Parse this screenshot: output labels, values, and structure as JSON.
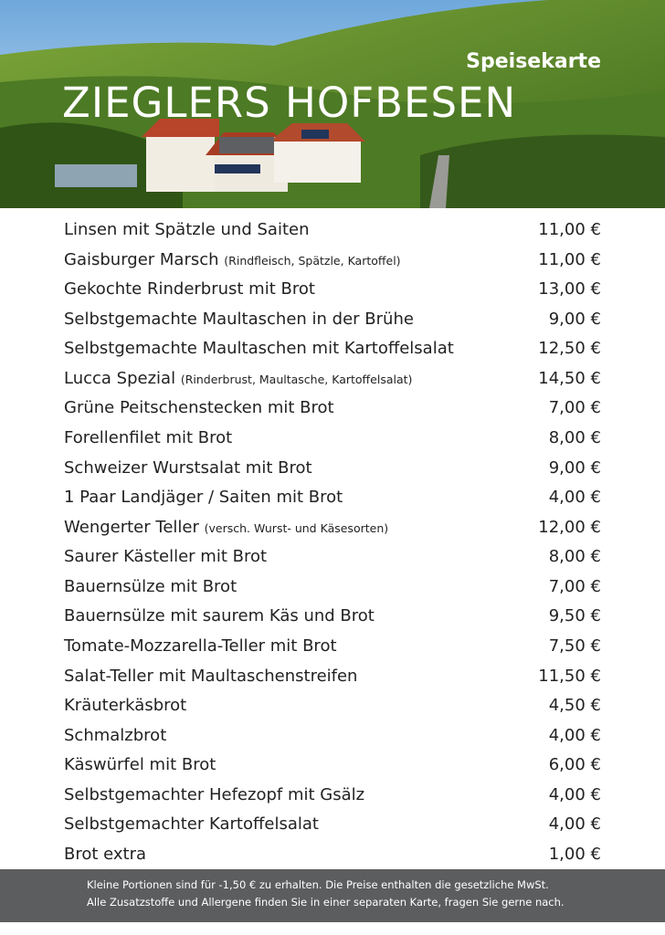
{
  "header": {
    "subtitle": "Speisekarte",
    "title": "ZIEGLERS HOFBESEN"
  },
  "items": [
    {
      "name": "Linsen mit Spätzle und Saiten",
      "price": "11,00 €"
    },
    {
      "name": "Gaisburger Marsch",
      "note": "(Rindfleisch, Spätzle, Kartoffel)",
      "price": "11,00 €"
    },
    {
      "name": "Gekochte Rinderbrust mit Brot",
      "price": "13,00 €"
    },
    {
      "name": "Selbstgemachte Maultaschen in der Brühe",
      "price": "9,00 €"
    },
    {
      "name": "Selbstgemachte Maultaschen mit Kartoffelsalat",
      "price": "12,50 €"
    },
    {
      "name": "Lucca Spezial",
      "note": "(Rinderbrust, Maultasche, Kartoffelsalat)",
      "price": "14,50 €"
    },
    {
      "name": "Grüne Peitschenstecken mit Brot",
      "price": "7,00 €"
    },
    {
      "name": "Forellenfilet mit Brot",
      "price": "8,00 €"
    },
    {
      "name": "Schweizer Wurstsalat mit Brot",
      "price": "9,00 €"
    },
    {
      "name": "1 Paar Landjäger / Saiten mit Brot",
      "price": "4,00 €"
    },
    {
      "name": "Wengerter Teller",
      "note": "(versch. Wurst- und Käsesorten)",
      "price": "12,00 €"
    },
    {
      "name": "Saurer Kästeller mit Brot",
      "price": "8,00 €"
    },
    {
      "name": "Bauernsülze mit Brot",
      "price": "7,00 €"
    },
    {
      "name": "Bauernsülze mit saurem Käs und Brot",
      "price": "9,50 €"
    },
    {
      "name": "Tomate-Mozzarella-Teller mit Brot",
      "price": "7,50 €"
    },
    {
      "name": "Salat-Teller mit Maultaschenstreifen",
      "price": "11,50 €"
    },
    {
      "name": "Kräuterkäsbrot",
      "price": "4,50 €"
    },
    {
      "name": "Schmalzbrot",
      "price": "4,00 €"
    },
    {
      "name": "Käswürfel mit Brot",
      "price": "6,00 €"
    },
    {
      "name": "Selbstgemachter Hefezopf mit Gsälz",
      "price": "4,00 €"
    },
    {
      "name": "Selbstgemachter Kartoffelsalat",
      "price": "4,00 €"
    },
    {
      "name": "Brot extra",
      "price": "1,00 €"
    }
  ],
  "footer": {
    "lines": [
      "Kleine Portionen sind für -1,50 € zu erhalten. Die Preise enthalten die gesetzliche MwSt.",
      "Alle Zusatzstoffe und Allergene finden Sie in einer separaten Karte, fragen Sie gerne nach."
    ]
  }
}
